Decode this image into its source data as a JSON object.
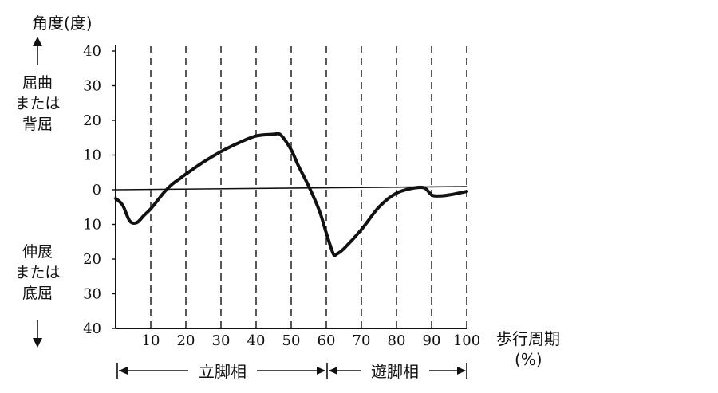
{
  "chart_data": {
    "type": "line",
    "ylabel": "角度(度)",
    "y_upper_label": [
      "屈曲",
      "または",
      "背屈"
    ],
    "y_lower_label": [
      "伸展",
      "または",
      "底屈"
    ],
    "y_ticks": [
      "40",
      "30",
      "20",
      "10",
      "0",
      "10",
      "20",
      "30",
      "40"
    ],
    "x_ticks": [
      "10",
      "20",
      "30",
      "40",
      "50",
      "60",
      "70",
      "80",
      "90",
      "100"
    ],
    "xlabel_line1": "歩行周期",
    "xlabel_line2": "(%)",
    "phase_stance": "立脚相",
    "phase_swing": "遊脚相",
    "xlim": [
      0,
      100
    ],
    "ylim": [
      -40,
      40
    ],
    "grid": "vertical dashed",
    "series": [
      {
        "x": [
          0,
          2,
          4,
          6,
          8,
          10,
          12,
          14,
          16,
          18,
          20,
          25,
          30,
          35,
          40,
          45,
          47,
          50,
          52,
          55,
          58,
          60,
          62,
          63,
          65,
          70,
          75,
          80,
          85,
          88,
          90,
          92,
          95,
          100
        ],
        "values": [
          -2.5,
          -4.5,
          -9,
          -9.5,
          -7.5,
          -5.5,
          -3,
          -0.5,
          1.5,
          3,
          4.5,
          8,
          11,
          13.5,
          15.5,
          16,
          15.8,
          11.5,
          7,
          1,
          -6,
          -12.5,
          -18.5,
          -18.5,
          -17,
          -11.5,
          -5,
          -1,
          0.5,
          0.5,
          -1.5,
          -1.8,
          -1.5,
          -0.5
        ]
      }
    ]
  }
}
